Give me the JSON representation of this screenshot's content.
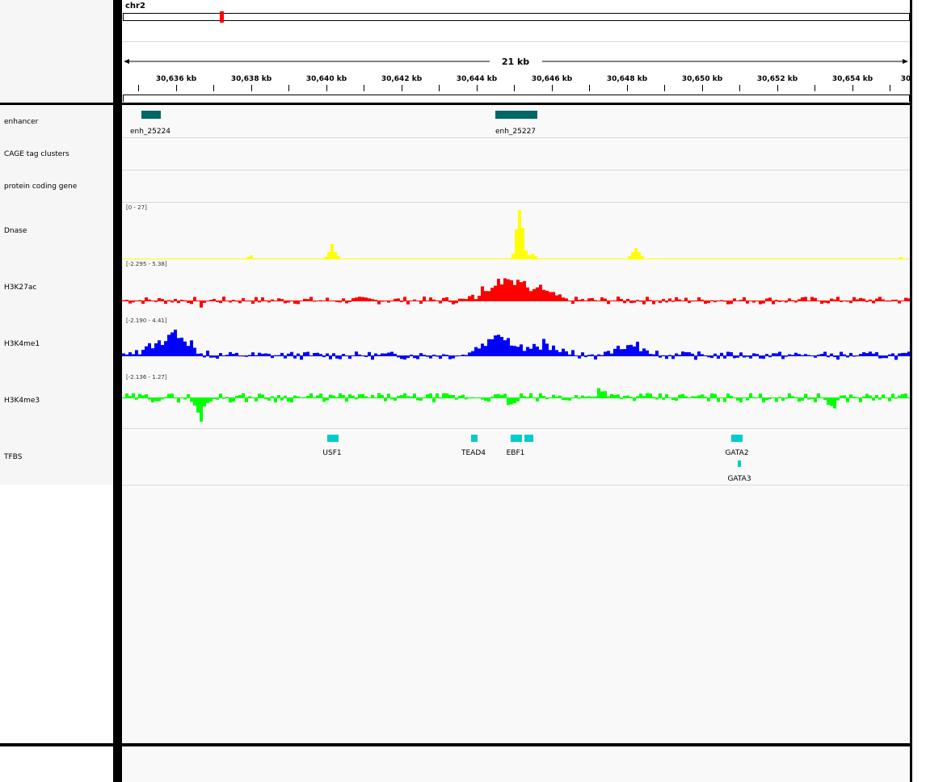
{
  "header": {
    "chromosome": "chr2",
    "span_label": "21 kb",
    "ruler_ticks": [
      "30,636 kb",
      "30,638 kb",
      "30,640 kb",
      "30,642 kb",
      "30,644 kb",
      "30,646 kb",
      "30,648 kb",
      "30,650 kb",
      "30,652 kb",
      "30,654 kb",
      "30"
    ],
    "ideogram_marker_color": "#ff0000"
  },
  "tracks": [
    {
      "name": "enhancer",
      "features": [
        {
          "label": "enh_25224"
        },
        {
          "label": "enh_25227"
        }
      ],
      "color": "#006666"
    },
    {
      "name": "CAGE tag clusters"
    },
    {
      "name": "protein coding gene"
    },
    {
      "name": "Dnase",
      "range": "[0 - 27]",
      "color": "#ffff00"
    },
    {
      "name": "H3K27ac",
      "range": "[-2.295 - 5.38]",
      "color": "#ff0000"
    },
    {
      "name": "H3K4me1",
      "range": "[-2.190 - 4.41]",
      "color": "#0000ff"
    },
    {
      "name": "H3K4me3",
      "range": "[-2.136 - 1.27]",
      "color": "#00ff00"
    },
    {
      "name": "TFBS",
      "features": [
        {
          "label": "USF1"
        },
        {
          "label": "TEAD4"
        },
        {
          "label": "EBF1"
        },
        {
          "label": "GATA2"
        },
        {
          "label": "GATA3"
        }
      ],
      "color": "#00cccc"
    }
  ]
}
